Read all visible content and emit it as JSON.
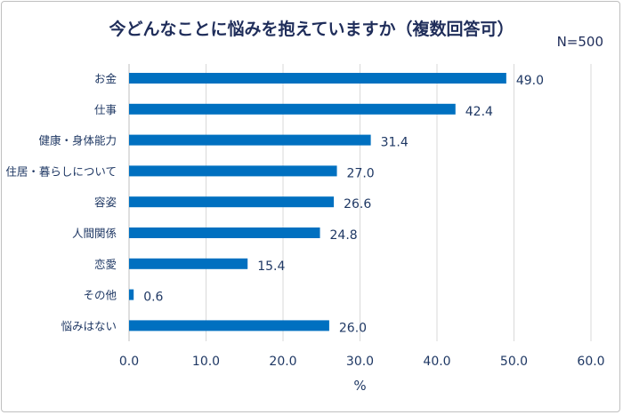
{
  "chart_data": {
    "type": "bar",
    "orientation": "horizontal",
    "title": "今どんなことに悩みを抱えていますか（複数回答可）",
    "annotation": "N=500",
    "categories": [
      "お金",
      "仕事",
      "健康・身体能力",
      "住居・暮らしについて",
      "容姿",
      "人間関係",
      "恋愛",
      "その他",
      "悩みはない"
    ],
    "values": [
      49.0,
      42.4,
      31.4,
      27.0,
      26.6,
      24.8,
      15.4,
      0.6,
      26.0
    ],
    "xlabel": "%",
    "xlim": [
      0,
      60
    ],
    "xticks": [
      "0.0",
      "10.0",
      "20.0",
      "30.0",
      "40.0",
      "50.0",
      "60.0"
    ],
    "grid": "vertical",
    "bar_color": "#0070c0"
  }
}
